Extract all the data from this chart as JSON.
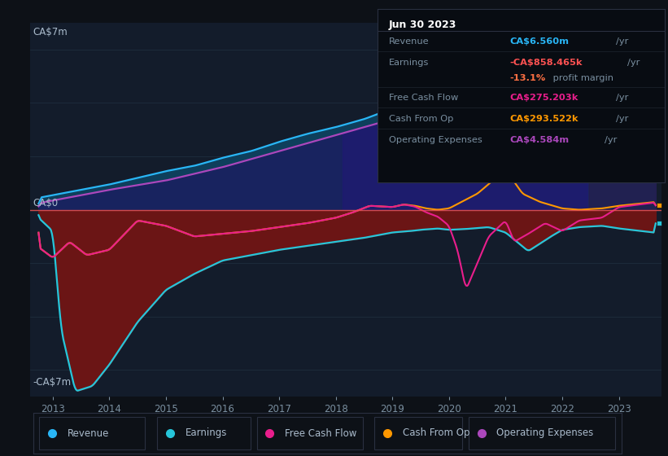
{
  "background_color": "#0d1117",
  "plot_bg_color": "#131c2b",
  "ylabel_top": "CA$7m",
  "ylabel_bottom": "-CA$7m",
  "ylabel_zero": "CA$0",
  "ylim": [
    -7000000,
    7000000
  ],
  "xlim_start": 2012.6,
  "xlim_end": 2023.75,
  "x_ticks": [
    2013,
    2014,
    2015,
    2016,
    2017,
    2018,
    2019,
    2020,
    2021,
    2022,
    2023
  ],
  "highlight_start": 2018.1,
  "highlight_end": 2022.45,
  "colors": {
    "revenue": "#29b6f6",
    "earnings": "#26c6da",
    "free_cash_flow": "#e91e8c",
    "cash_from_op": "#ff9800",
    "operating_expenses": "#ab47bc",
    "revenue_fill": "#0d3b5e",
    "earnings_fill": "#7b1a1a",
    "highlight_fill": "#1a1870",
    "zero_line": "#ef5350"
  },
  "info_box": {
    "date": "Jun 30 2023",
    "revenue_label": "Revenue",
    "revenue_value": "CA$6.560m",
    "revenue_color": "#29b6f6",
    "earnings_label": "Earnings",
    "earnings_value": "-CA$858.465k",
    "earnings_color": "#ff5252",
    "margin_value": "-13.1%",
    "margin_color": "#ff7043",
    "margin_text": " profit margin",
    "fcf_label": "Free Cash Flow",
    "fcf_value": "CA$275.203k",
    "fcf_color": "#e91e8c",
    "cfop_label": "Cash From Op",
    "cfop_value": "CA$293.522k",
    "cfop_color": "#ff9800",
    "opex_label": "Operating Expenses",
    "opex_value": "CA$4.584m",
    "opex_color": "#ab47bc"
  },
  "legend": [
    {
      "label": "Revenue",
      "color": "#29b6f6"
    },
    {
      "label": "Earnings",
      "color": "#26c6da"
    },
    {
      "label": "Free Cash Flow",
      "color": "#e91e8c"
    },
    {
      "label": "Cash From Op",
      "color": "#ff9800"
    },
    {
      "label": "Operating Expenses",
      "color": "#ab47bc"
    }
  ]
}
